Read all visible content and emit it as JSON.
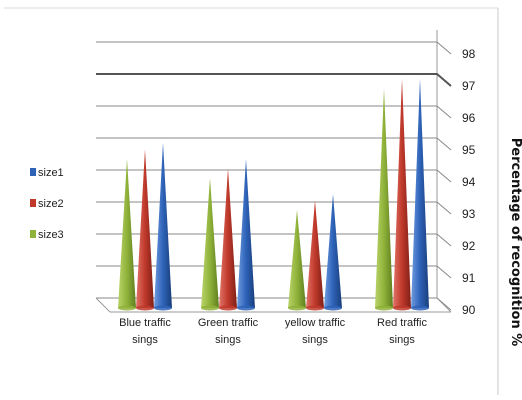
{
  "chart_data": {
    "type": "bar",
    "title": "",
    "xlabel": "",
    "ylabel": "Percentage of recognition %",
    "ylim": [
      90,
      98
    ],
    "yticks": [
      "90",
      "91",
      "92",
      "93",
      "94",
      "95",
      "96",
      "97",
      "98"
    ],
    "categories": [
      [
        "Blue traffic",
        "sings"
      ],
      [
        "Green traffic",
        "sings"
      ],
      [
        "yellow traffic",
        "sings"
      ],
      [
        "Red traffic",
        "sings"
      ]
    ],
    "series": [
      {
        "name": "size3",
        "color": "#8fb23a",
        "values": [
          94.6,
          94.0,
          93.0,
          96.8
        ]
      },
      {
        "name": "size2",
        "color": "#c0392b",
        "values": [
          94.9,
          94.3,
          93.3,
          97.1
        ]
      },
      {
        "name": "size1",
        "color": "#2e63b8",
        "values": [
          95.1,
          94.6,
          93.5,
          97.1
        ]
      }
    ],
    "legend_order": [
      "size1",
      "size2",
      "size3"
    ],
    "legend_position": "left",
    "bar_shape": "cone",
    "grid": true
  }
}
